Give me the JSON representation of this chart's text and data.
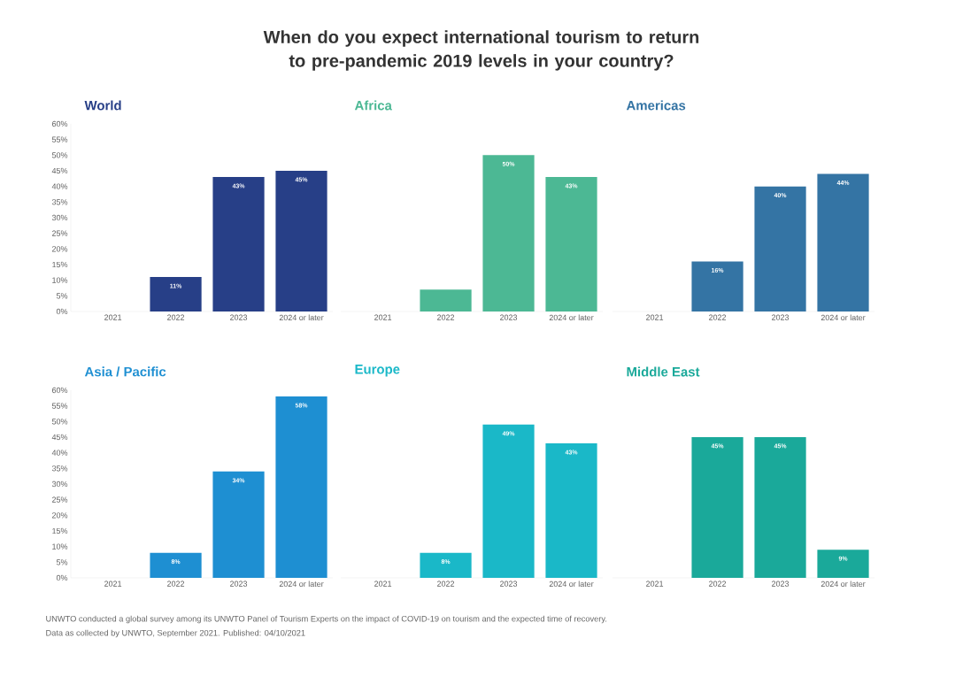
{
  "chart_data": [
    {
      "type": "bar",
      "title": "World",
      "categories": [
        "2021",
        "2022",
        "2023",
        "2024 or later"
      ],
      "values": [
        0,
        11,
        43,
        45
      ],
      "value_labels": [
        null,
        "11%",
        "43%",
        "45%"
      ],
      "color": "#273f87",
      "ylim": [
        0,
        60
      ],
      "yticks": [
        {
          "value": 0,
          "label": "0%"
        },
        {
          "value": 5,
          "label": "5%"
        },
        {
          "value": 10,
          "label": "10%"
        },
        {
          "value": 15,
          "label": "15%"
        },
        {
          "value": 20,
          "label": "20%"
        },
        {
          "value": 25,
          "label": "25%"
        },
        {
          "value": 30,
          "label": "30%"
        },
        {
          "value": 35,
          "label": "35%"
        },
        {
          "value": 40,
          "label": "40%"
        },
        {
          "value": 45,
          "label": "45%"
        },
        {
          "value": 50,
          "label": "50%"
        },
        {
          "value": 55,
          "label": "55%"
        },
        {
          "value": 60,
          "label": "60%"
        }
      ],
      "annotations": [
        "When do you expect international tourism to return to pre-pandemic 2019 levels in your country?",
        "UNWTO conducted a global survey among its UNWTO Panel of Tourism Experts on the impact of COVID-19 on tourism and the expected time of recovery.",
        "Data as collected by UNWTO, September 2021. Published: 04/10/2021"
      ]
    },
    {
      "type": "bar",
      "title": "Africa",
      "categories": [
        "2021",
        "2022",
        "2023",
        "2024 or later"
      ],
      "values": [
        0,
        7,
        50,
        43
      ],
      "value_labels": [
        null,
        null,
        "50%",
        "43%"
      ],
      "color": "#4cb894",
      "ylim": [
        0,
        60
      ],
      "tick_labels": "x"
    },
    {
      "type": "bar",
      "title": "Americas",
      "categories": [
        "2021",
        "2022",
        "2023",
        "2024 or later"
      ],
      "values": [
        0,
        16,
        40,
        44
      ],
      "value_labels": [
        null,
        "16%",
        "40%",
        "44%"
      ],
      "color": "#3474a4",
      "ylim": [
        0,
        60
      ],
      "tick_labels": "x"
    },
    {
      "type": "bar",
      "title": "Asia / Pacific",
      "categories": [
        "2021",
        "2022",
        "2023",
        "2024 or later"
      ],
      "values": [
        0,
        8,
        34,
        58
      ],
      "value_labels": [
        null,
        "8%",
        "34%",
        "58%"
      ],
      "color": "#1e8fd2",
      "ylim": [
        0,
        60
      ],
      "yticks": [
        {
          "value": 0,
          "label": "0%"
        },
        {
          "value": 5,
          "label": "5%"
        },
        {
          "value": 10,
          "label": "10%"
        },
        {
          "value": 15,
          "label": "15%"
        },
        {
          "value": 20,
          "label": "20%"
        },
        {
          "value": 25,
          "label": "25%"
        },
        {
          "value": 30,
          "label": "30%"
        },
        {
          "value": 35,
          "label": "35%"
        },
        {
          "value": 40,
          "label": "40%"
        },
        {
          "value": 45,
          "label": "45%"
        },
        {
          "value": 50,
          "label": "50%"
        },
        {
          "value": 55,
          "label": "55%"
        },
        {
          "value": 60,
          "label": "60%"
        }
      ]
    },
    {
      "type": "bar",
      "title": "Europe",
      "categories": [
        "2021",
        "2022",
        "2023",
        "2024 or later"
      ],
      "values": [
        0,
        8,
        49,
        43
      ],
      "value_labels": [
        null,
        "8%",
        "49%",
        "43%"
      ],
      "color": "#1ab8c8",
      "ylim": [
        0,
        60
      ],
      "tick_labels": "x"
    },
    {
      "type": "bar",
      "title": "Middle East",
      "categories": [
        "2021",
        "2022",
        "2023",
        "2024 or later"
      ],
      "values": [
        0,
        45,
        45,
        9
      ],
      "value_labels": [
        null,
        "45%",
        "45%",
        "9%"
      ],
      "color": "#1aa99a",
      "ylim": [
        0,
        60
      ],
      "tick_labels": "x"
    }
  ]
}
